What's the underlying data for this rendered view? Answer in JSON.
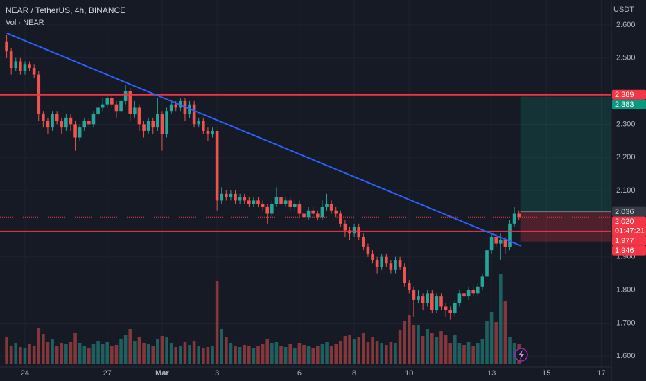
{
  "chart_data": {
    "type": "candlestick",
    "title": "NEAR / TetherUS, 4h, BINANCE",
    "subtitle": "Vol · NEAR",
    "y_axis_label": "USDT",
    "grid": true,
    "up_color": "#26a69a",
    "down_color": "#ef5350",
    "xlim": [
      -1.45,
      132.2
    ],
    "ylim": [
      1.567,
      2.675
    ],
    "xticks": [
      {
        "value": 4,
        "label": "24"
      },
      {
        "value": 22,
        "label": "27"
      },
      {
        "value": 34,
        "label": "Mar"
      },
      {
        "value": 46,
        "label": "3"
      },
      {
        "value": 64,
        "label": "6"
      },
      {
        "value": 76,
        "label": "8"
      },
      {
        "value": 88,
        "label": "10"
      },
      {
        "value": 106,
        "label": "13"
      },
      {
        "value": 118,
        "label": "15"
      },
      {
        "value": 130,
        "label": "17"
      }
    ],
    "yticks": [
      {
        "value": 2.6,
        "label": "2.600"
      },
      {
        "value": 2.5,
        "label": "2.500"
      },
      {
        "value": 2.3,
        "label": "2.300"
      },
      {
        "value": 2.2,
        "label": "2.200"
      },
      {
        "value": 2.1,
        "label": "2.100"
      },
      {
        "value": 1.9,
        "label": "1.900"
      },
      {
        "value": 1.8,
        "label": "1.800"
      },
      {
        "value": 1.7,
        "label": "1.700"
      },
      {
        "value": 1.6,
        "label": "1.600"
      }
    ],
    "open": [
      2.55,
      2.52,
      2.47,
      2.49,
      2.46,
      2.48,
      2.47,
      2.45,
      2.33,
      2.31,
      2.29,
      2.33,
      2.31,
      2.29,
      2.32,
      2.3,
      2.26,
      2.29,
      2.31,
      2.3,
      2.33,
      2.35,
      2.36,
      2.38,
      2.36,
      2.34,
      2.37,
      2.4,
      2.33,
      2.35,
      2.3,
      2.28,
      2.31,
      2.29,
      2.33,
      2.27,
      2.34,
      2.36,
      2.35,
      2.37,
      2.33,
      2.36,
      2.3,
      2.31,
      2.28,
      2.27,
      2.28,
      2.07,
      2.09,
      2.08,
      2.09,
      2.07,
      2.08,
      2.07,
      2.06,
      2.07,
      2.06,
      2.05,
      2.03,
      2.06,
      2.08,
      2.06,
      2.07,
      2.05,
      2.06,
      2.03,
      2.02,
      2.04,
      2.03,
      2.02,
      2.05,
      2.06,
      2.04,
      2.03,
      2.0,
      1.98,
      1.97,
      1.99,
      1.96,
      1.93,
      1.91,
      1.89,
      1.87,
      1.9,
      1.88,
      1.86,
      1.89,
      1.87,
      1.82,
      1.8,
      1.77,
      1.78,
      1.76,
      1.79,
      1.74,
      1.78,
      1.75,
      1.74,
      1.73,
      1.76,
      1.79,
      1.78,
      1.8,
      1.79,
      1.81,
      1.84,
      1.92,
      1.96,
      1.94,
      1.95,
      1.93,
      2.0,
      2.03
    ],
    "high": [
      2.57,
      2.53,
      2.5,
      2.5,
      2.49,
      2.49,
      2.48,
      2.46,
      2.34,
      2.32,
      2.34,
      2.34,
      2.32,
      2.33,
      2.33,
      2.31,
      2.3,
      2.32,
      2.32,
      2.34,
      2.37,
      2.38,
      2.39,
      2.39,
      2.37,
      2.38,
      2.42,
      2.41,
      2.37,
      2.36,
      2.31,
      2.32,
      2.32,
      2.38,
      2.34,
      2.35,
      2.37,
      2.37,
      2.38,
      2.38,
      2.37,
      2.37,
      2.32,
      2.32,
      2.29,
      2.29,
      2.28,
      2.11,
      2.1,
      2.1,
      2.1,
      2.09,
      2.09,
      2.08,
      2.08,
      2.08,
      2.07,
      2.06,
      2.07,
      2.11,
      2.09,
      2.08,
      2.08,
      2.07,
      2.07,
      2.04,
      2.05,
      2.05,
      2.04,
      2.07,
      2.09,
      2.07,
      2.05,
      2.04,
      2.01,
      1.99,
      2.0,
      2.0,
      1.97,
      1.94,
      1.92,
      1.9,
      1.91,
      1.91,
      1.89,
      1.9,
      1.9,
      1.88,
      1.83,
      1.81,
      1.8,
      1.79,
      1.8,
      1.8,
      1.79,
      1.79,
      1.76,
      1.75,
      1.77,
      1.8,
      1.8,
      1.81,
      1.81,
      1.82,
      1.85,
      1.93,
      1.97,
      1.97,
      1.97,
      1.96,
      2.01,
      2.05,
      2.04
    ],
    "low": [
      2.5,
      2.45,
      2.46,
      2.45,
      2.45,
      2.46,
      2.44,
      2.31,
      2.29,
      2.27,
      2.28,
      2.3,
      2.27,
      2.28,
      2.28,
      2.22,
      2.25,
      2.28,
      2.29,
      2.29,
      2.32,
      2.34,
      2.35,
      2.35,
      2.32,
      2.33,
      2.36,
      2.31,
      2.32,
      2.28,
      2.26,
      2.27,
      2.27,
      2.28,
      2.22,
      2.26,
      2.33,
      2.34,
      2.34,
      2.31,
      2.32,
      2.29,
      2.29,
      2.27,
      2.25,
      2.26,
      2.04,
      2.06,
      2.07,
      2.07,
      2.06,
      2.06,
      2.06,
      2.05,
      2.05,
      2.05,
      2.04,
      2.0,
      2.02,
      2.05,
      2.05,
      2.05,
      2.04,
      2.04,
      2.02,
      2.0,
      2.01,
      2.02,
      2.01,
      2.01,
      2.04,
      2.03,
      2.02,
      1.99,
      1.96,
      1.95,
      1.96,
      1.95,
      1.92,
      1.9,
      1.88,
      1.85,
      1.86,
      1.87,
      1.85,
      1.85,
      1.86,
      1.81,
      1.79,
      1.72,
      1.76,
      1.74,
      1.75,
      1.73,
      1.73,
      1.74,
      1.72,
      1.71,
      1.72,
      1.75,
      1.77,
      1.77,
      1.78,
      1.78,
      1.8,
      1.83,
      1.91,
      1.93,
      1.89,
      1.91,
      1.92,
      1.99,
      2.01
    ],
    "close": [
      2.52,
      2.47,
      2.49,
      2.46,
      2.48,
      2.47,
      2.45,
      2.33,
      2.31,
      2.29,
      2.33,
      2.31,
      2.29,
      2.32,
      2.3,
      2.26,
      2.29,
      2.31,
      2.3,
      2.33,
      2.35,
      2.36,
      2.38,
      2.36,
      2.34,
      2.37,
      2.4,
      2.33,
      2.35,
      2.3,
      2.28,
      2.31,
      2.29,
      2.33,
      2.27,
      2.34,
      2.36,
      2.35,
      2.37,
      2.33,
      2.36,
      2.3,
      2.31,
      2.28,
      2.27,
      2.28,
      2.07,
      2.09,
      2.08,
      2.09,
      2.07,
      2.08,
      2.07,
      2.06,
      2.07,
      2.06,
      2.05,
      2.03,
      2.06,
      2.08,
      2.06,
      2.07,
      2.05,
      2.06,
      2.03,
      2.02,
      2.04,
      2.03,
      2.02,
      2.05,
      2.06,
      2.04,
      2.03,
      2.0,
      1.98,
      1.97,
      1.99,
      1.96,
      1.93,
      1.91,
      1.89,
      1.87,
      1.9,
      1.88,
      1.86,
      1.89,
      1.87,
      1.82,
      1.8,
      1.77,
      1.78,
      1.76,
      1.79,
      1.74,
      1.78,
      1.75,
      1.74,
      1.73,
      1.76,
      1.79,
      1.78,
      1.8,
      1.79,
      1.81,
      1.84,
      1.92,
      1.96,
      1.94,
      1.95,
      1.93,
      2.0,
      2.03,
      2.02
    ],
    "volume": [
      380,
      260,
      300,
      240,
      220,
      280,
      250,
      520,
      430,
      310,
      350,
      260,
      300,
      280,
      320,
      450,
      300,
      250,
      230,
      280,
      330,
      290,
      310,
      260,
      270,
      350,
      420,
      500,
      330,
      380,
      300,
      280,
      260,
      350,
      400,
      380,
      300,
      240,
      260,
      320,
      270,
      330,
      250,
      220,
      240,
      260,
      1200,
      500,
      380,
      300,
      260,
      240,
      270,
      250,
      230,
      260,
      280,
      350,
      300,
      320,
      260,
      240,
      280,
      230,
      300,
      270,
      250,
      230,
      260,
      290,
      320,
      260,
      280,
      330,
      400,
      420,
      350,
      380,
      450,
      320,
      380,
      330,
      300,
      270,
      320,
      300,
      480,
      620,
      700,
      560,
      560,
      400,
      500,
      450,
      380,
      470,
      420,
      300,
      420,
      300,
      270,
      320,
      260,
      300,
      350,
      620,
      750,
      600,
      1300,
      900,
      380,
      300,
      280
    ],
    "trendline": {
      "x": [
        0,
        112.5
      ],
      "y": [
        2.575,
        1.933
      ],
      "color": "#2962ff"
    },
    "hlines": [
      {
        "value": 2.389,
        "label": "2.389",
        "color": "#f23645"
      },
      {
        "value": 1.977,
        "label": "1.977",
        "color": "#f23645"
      }
    ],
    "position": {
      "x_start": 112.3,
      "target": {
        "value": 2.383,
        "label": "2.383",
        "color": "#089981"
      },
      "entry": {
        "value": 2.036,
        "label": "2.036"
      },
      "stop": {
        "value": 1.946,
        "label": "1.946",
        "color": "#f23645"
      }
    },
    "last_price": {
      "value": 2.02,
      "label": "2.020",
      "countdown": "01:47:21",
      "color": "#f23645"
    }
  }
}
